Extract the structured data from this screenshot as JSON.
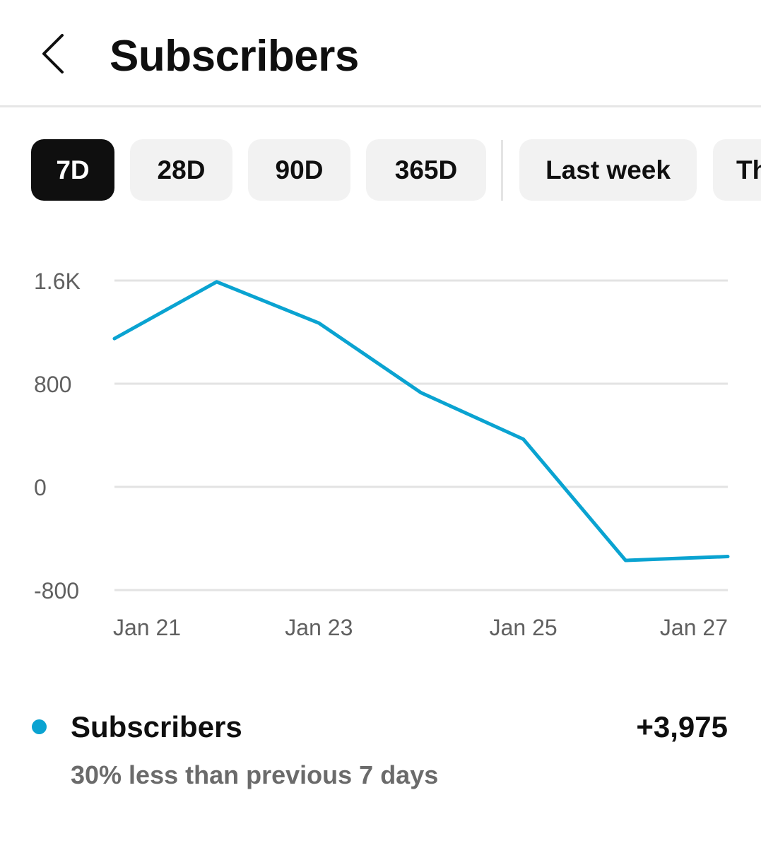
{
  "header": {
    "title": "Subscribers",
    "back_icon": "chevron-left-icon"
  },
  "chips": [
    {
      "label": "7D",
      "selected": true
    },
    {
      "label": "28D",
      "selected": false
    },
    {
      "label": "90D",
      "selected": false
    },
    {
      "label": "365D",
      "selected": false
    },
    {
      "label": "Last week",
      "selected": false
    },
    {
      "label": "Th",
      "selected": false
    }
  ],
  "chart_data": {
    "type": "line",
    "x": [
      "Jan 21",
      "Jan 22",
      "Jan 23",
      "Jan 24",
      "Jan 25",
      "Jan 26",
      "Jan 27"
    ],
    "x_tick_labels": [
      "Jan 21",
      "Jan 23",
      "Jan 25",
      "Jan 27"
    ],
    "y_tick_labels": [
      "1.6K",
      "800",
      "0",
      "-800"
    ],
    "y_ticks": [
      1600,
      800,
      0,
      -800
    ],
    "ylim": [
      -800,
      1600
    ],
    "series": [
      {
        "name": "Subscribers",
        "color": "#0aa3d1",
        "values": [
          1150,
          1590,
          1270,
          730,
          370,
          -570,
          -540
        ]
      }
    ],
    "grid": true,
    "legend_position": "bottom"
  },
  "legend": {
    "label": "Subscribers",
    "value": "+3,975",
    "subtext": "30% less than previous 7 days",
    "color": "#0aa3d1"
  }
}
